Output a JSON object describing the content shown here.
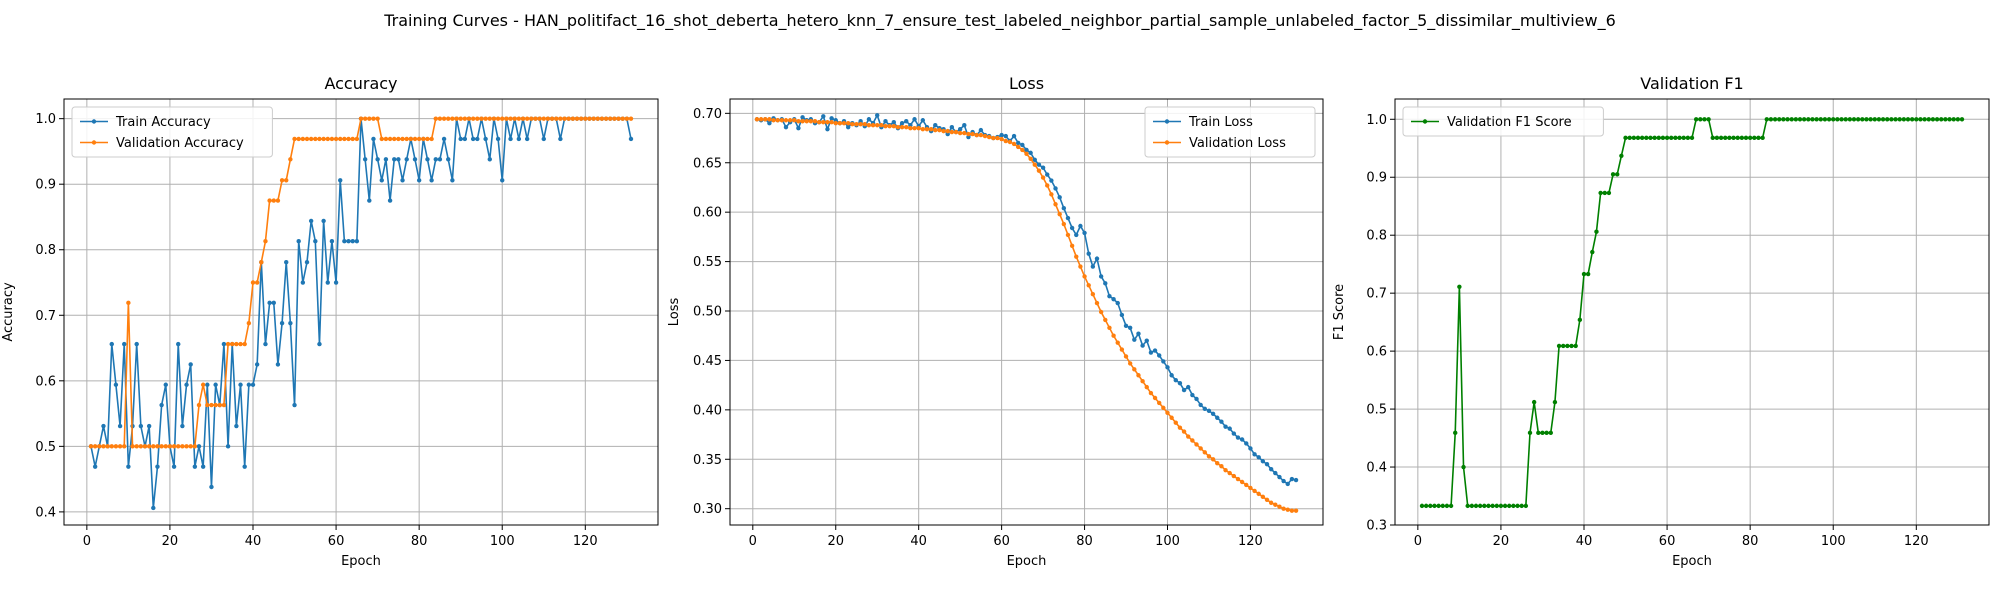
{
  "figure_title": "Training Curves - HAN_politifact_16_shot_deberta_hetero_knn_7_ensure_test_labeled_neighbor_partial_sample_unlabeled_factor_5_dissimilar_multiview_6",
  "colors": {
    "train": "#1f77b4",
    "validation": "#ff7f0e",
    "f1": "#008000",
    "grid": "#b0b0b0"
  },
  "chart_data": [
    {
      "type": "line",
      "title": "Accuracy",
      "xlabel": "Epoch",
      "ylabel": "Accuracy",
      "xlim": [
        -5.5,
        137.5
      ],
      "ylim": [
        0.38,
        1.03
      ],
      "xticks": [
        0,
        20,
        40,
        60,
        80,
        100,
        120
      ],
      "yticks": [
        0.4,
        0.5,
        0.6,
        0.7,
        0.8,
        0.9,
        1.0
      ],
      "ytick_labels": [
        "0.4",
        "0.5",
        "0.6",
        "0.7",
        "0.8",
        "0.9",
        "1.0"
      ],
      "grid": true,
      "legend_position": "upper-left",
      "series": [
        {
          "name": "Train Accuracy",
          "color": "#1f77b4",
          "x_start": 1,
          "values": [
            0.5,
            0.469,
            0.5,
            0.531,
            0.5,
            0.656,
            0.594,
            0.531,
            0.656,
            0.469,
            0.531,
            0.656,
            0.531,
            0.5,
            0.531,
            0.406,
            0.469,
            0.563,
            0.594,
            0.5,
            0.469,
            0.656,
            0.531,
            0.594,
            0.625,
            0.469,
            0.5,
            0.469,
            0.594,
            0.438,
            0.594,
            0.563,
            0.656,
            0.5,
            0.656,
            0.531,
            0.594,
            0.469,
            0.594,
            0.594,
            0.625,
            0.781,
            0.656,
            0.719,
            0.719,
            0.625,
            0.688,
            0.781,
            0.688,
            0.563,
            0.813,
            0.75,
            0.781,
            0.844,
            0.813,
            0.656,
            0.844,
            0.75,
            0.813,
            0.75,
            0.906,
            0.813,
            0.813,
            0.813,
            0.813,
            1.0,
            0.938,
            0.875,
            0.969,
            0.938,
            0.906,
            0.938,
            0.875,
            0.938,
            0.938,
            0.906,
            0.938,
            0.969,
            0.938,
            0.906,
            0.969,
            0.938,
            0.906,
            0.938,
            0.938,
            0.969,
            0.938,
            0.906,
            1.0,
            0.969,
            0.969,
            1.0,
            0.969,
            0.969,
            1.0,
            0.969,
            0.938,
            1.0,
            0.969,
            0.906,
            1.0,
            0.969,
            1.0,
            0.969,
            1.0,
            0.969,
            1.0,
            1.0,
            1.0,
            0.969,
            1.0,
            1.0,
            1.0,
            0.969,
            1.0,
            1.0,
            1.0,
            1.0,
            1.0,
            1.0,
            1.0,
            1.0,
            1.0,
            1.0,
            1.0,
            1.0,
            1.0,
            1.0,
            1.0,
            1.0,
            0.969
          ]
        },
        {
          "name": "Validation Accuracy",
          "color": "#ff7f0e",
          "x_start": 1,
          "values": [
            0.5,
            0.5,
            0.5,
            0.5,
            0.5,
            0.5,
            0.5,
            0.5,
            0.5,
            0.719,
            0.5,
            0.5,
            0.5,
            0.5,
            0.5,
            0.5,
            0.5,
            0.5,
            0.5,
            0.5,
            0.5,
            0.5,
            0.5,
            0.5,
            0.5,
            0.5,
            0.563,
            0.594,
            0.563,
            0.563,
            0.563,
            0.563,
            0.563,
            0.656,
            0.656,
            0.656,
            0.656,
            0.656,
            0.688,
            0.75,
            0.75,
            0.781,
            0.813,
            0.875,
            0.875,
            0.875,
            0.906,
            0.906,
            0.938,
            0.969,
            0.969,
            0.969,
            0.969,
            0.969,
            0.969,
            0.969,
            0.969,
            0.969,
            0.969,
            0.969,
            0.969,
            0.969,
            0.969,
            0.969,
            0.969,
            1.0,
            1.0,
            1.0,
            1.0,
            1.0,
            0.969,
            0.969,
            0.969,
            0.969,
            0.969,
            0.969,
            0.969,
            0.969,
            0.969,
            0.969,
            0.969,
            0.969,
            0.969,
            1.0,
            1.0,
            1.0,
            1.0,
            1.0,
            1.0,
            1.0,
            1.0,
            1.0,
            1.0,
            1.0,
            1.0,
            1.0,
            1.0,
            1.0,
            1.0,
            1.0,
            1.0,
            1.0,
            1.0,
            1.0,
            1.0,
            1.0,
            1.0,
            1.0,
            1.0,
            1.0,
            1.0,
            1.0,
            1.0,
            1.0,
            1.0,
            1.0,
            1.0,
            1.0,
            1.0,
            1.0,
            1.0,
            1.0,
            1.0,
            1.0,
            1.0,
            1.0,
            1.0,
            1.0,
            1.0,
            1.0,
            1.0
          ]
        }
      ]
    },
    {
      "type": "line",
      "title": "Loss",
      "xlabel": "Epoch",
      "ylabel": "Loss",
      "xlim": [
        -5.5,
        137.5
      ],
      "ylim": [
        0.2835,
        0.7145
      ],
      "xticks": [
        0,
        20,
        40,
        60,
        80,
        100,
        120
      ],
      "yticks": [
        0.3,
        0.35,
        0.4,
        0.45,
        0.5,
        0.55,
        0.6,
        0.65,
        0.7
      ],
      "ytick_labels": [
        "0.30",
        "0.35",
        "0.40",
        "0.45",
        "0.50",
        "0.55",
        "0.60",
        "0.65",
        "0.70"
      ],
      "grid": true,
      "legend_position": "upper-right",
      "series": [
        {
          "name": "Train Loss",
          "color": "#1f77b4",
          "x_start": 1,
          "values": [
            0.694,
            0.693,
            0.694,
            0.69,
            0.695,
            0.693,
            0.694,
            0.686,
            0.691,
            0.694,
            0.685,
            0.696,
            0.693,
            0.694,
            0.69,
            0.691,
            0.697,
            0.684,
            0.695,
            0.693,
            0.69,
            0.692,
            0.686,
            0.69,
            0.688,
            0.692,
            0.687,
            0.694,
            0.69,
            0.698,
            0.686,
            0.692,
            0.688,
            0.691,
            0.685,
            0.69,
            0.692,
            0.688,
            0.694,
            0.687,
            0.693,
            0.686,
            0.682,
            0.688,
            0.685,
            0.684,
            0.679,
            0.686,
            0.681,
            0.684,
            0.688,
            0.676,
            0.681,
            0.678,
            0.683,
            0.678,
            0.677,
            0.675,
            0.676,
            0.678,
            0.677,
            0.672,
            0.677,
            0.67,
            0.668,
            0.663,
            0.66,
            0.653,
            0.648,
            0.645,
            0.638,
            0.632,
            0.624,
            0.615,
            0.604,
            0.594,
            0.584,
            0.577,
            0.586,
            0.579,
            0.558,
            0.545,
            0.553,
            0.535,
            0.528,
            0.515,
            0.512,
            0.508,
            0.496,
            0.485,
            0.483,
            0.471,
            0.477,
            0.465,
            0.47,
            0.458,
            0.46,
            0.455,
            0.449,
            0.443,
            0.435,
            0.43,
            0.427,
            0.42,
            0.423,
            0.415,
            0.411,
            0.405,
            0.401,
            0.399,
            0.396,
            0.392,
            0.388,
            0.383,
            0.381,
            0.376,
            0.372,
            0.37,
            0.366,
            0.361,
            0.355,
            0.352,
            0.348,
            0.345,
            0.34,
            0.336,
            0.332,
            0.328,
            0.325,
            0.33,
            0.329
          ]
        },
        {
          "name": "Validation Loss",
          "color": "#ff7f0e",
          "x_start": 1,
          "values": [
            0.694,
            0.694,
            0.694,
            0.694,
            0.693,
            0.693,
            0.693,
            0.693,
            0.693,
            0.693,
            0.692,
            0.692,
            0.692,
            0.692,
            0.692,
            0.691,
            0.691,
            0.691,
            0.691,
            0.69,
            0.69,
            0.69,
            0.69,
            0.689,
            0.689,
            0.689,
            0.689,
            0.688,
            0.688,
            0.688,
            0.688,
            0.687,
            0.687,
            0.687,
            0.686,
            0.686,
            0.686,
            0.685,
            0.685,
            0.685,
            0.684,
            0.684,
            0.684,
            0.683,
            0.683,
            0.682,
            0.682,
            0.681,
            0.681,
            0.68,
            0.68,
            0.679,
            0.679,
            0.678,
            0.678,
            0.677,
            0.676,
            0.675,
            0.675,
            0.674,
            0.672,
            0.671,
            0.669,
            0.666,
            0.663,
            0.659,
            0.654,
            0.648,
            0.642,
            0.635,
            0.627,
            0.618,
            0.608,
            0.598,
            0.588,
            0.577,
            0.566,
            0.555,
            0.545,
            0.535,
            0.526,
            0.517,
            0.508,
            0.499,
            0.491,
            0.483,
            0.475,
            0.468,
            0.461,
            0.454,
            0.447,
            0.441,
            0.435,
            0.429,
            0.423,
            0.417,
            0.412,
            0.407,
            0.402,
            0.397,
            0.392,
            0.387,
            0.382,
            0.378,
            0.373,
            0.369,
            0.365,
            0.361,
            0.357,
            0.353,
            0.35,
            0.346,
            0.343,
            0.339,
            0.336,
            0.333,
            0.33,
            0.327,
            0.324,
            0.321,
            0.318,
            0.315,
            0.312,
            0.309,
            0.306,
            0.304,
            0.302,
            0.3,
            0.299,
            0.298,
            0.298
          ]
        }
      ]
    },
    {
      "type": "line",
      "title": "Validation F1",
      "xlabel": "Epoch",
      "ylabel": "F1 Score",
      "xlim": [
        -5.5,
        137.5
      ],
      "ylim": [
        0.3,
        1.035
      ],
      "xticks": [
        0,
        20,
        40,
        60,
        80,
        100,
        120
      ],
      "yticks": [
        0.3,
        0.4,
        0.5,
        0.6,
        0.7,
        0.8,
        0.9,
        1.0
      ],
      "ytick_labels": [
        "0.3",
        "0.4",
        "0.5",
        "0.6",
        "0.7",
        "0.8",
        "0.9",
        "1.0"
      ],
      "grid": true,
      "legend_position": "upper-left",
      "series": [
        {
          "name": "Validation F1 Score",
          "color": "#008000",
          "x_start": 1,
          "values": [
            0.333,
            0.333,
            0.333,
            0.333,
            0.333,
            0.333,
            0.333,
            0.333,
            0.459,
            0.711,
            0.4,
            0.333,
            0.333,
            0.333,
            0.333,
            0.333,
            0.333,
            0.333,
            0.333,
            0.333,
            0.333,
            0.333,
            0.333,
            0.333,
            0.333,
            0.333,
            0.459,
            0.512,
            0.459,
            0.459,
            0.459,
            0.459,
            0.512,
            0.609,
            0.609,
            0.609,
            0.609,
            0.609,
            0.654,
            0.733,
            0.733,
            0.771,
            0.806,
            0.873,
            0.873,
            0.873,
            0.905,
            0.905,
            0.937,
            0.968,
            0.968,
            0.968,
            0.968,
            0.968,
            0.968,
            0.968,
            0.968,
            0.968,
            0.968,
            0.968,
            0.968,
            0.968,
            0.968,
            0.968,
            0.968,
            0.968,
            1.0,
            1.0,
            1.0,
            1.0,
            0.968,
            0.968,
            0.968,
            0.968,
            0.968,
            0.968,
            0.968,
            0.968,
            0.968,
            0.968,
            0.968,
            0.968,
            0.968,
            1.0,
            1.0,
            1.0,
            1.0,
            1.0,
            1.0,
            1.0,
            1.0,
            1.0,
            1.0,
            1.0,
            1.0,
            1.0,
            1.0,
            1.0,
            1.0,
            1.0,
            1.0,
            1.0,
            1.0,
            1.0,
            1.0,
            1.0,
            1.0,
            1.0,
            1.0,
            1.0,
            1.0,
            1.0,
            1.0,
            1.0,
            1.0,
            1.0,
            1.0,
            1.0,
            1.0,
            1.0,
            1.0,
            1.0,
            1.0,
            1.0,
            1.0,
            1.0,
            1.0,
            1.0,
            1.0,
            1.0,
            1.0
          ]
        }
      ]
    }
  ]
}
